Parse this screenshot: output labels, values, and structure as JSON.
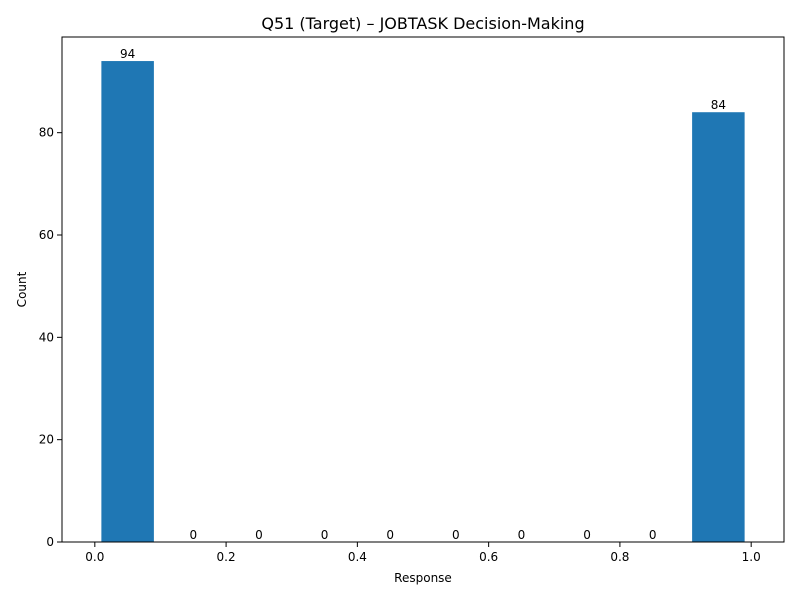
{
  "chart_data": {
    "type": "bar",
    "title": "Q51 (Target) – JOBTASK Decision-Making",
    "xlabel": "Response",
    "ylabel": "Count",
    "bins": [
      {
        "x0": 0.0,
        "x1": 0.1,
        "value": 94
      },
      {
        "x0": 0.1,
        "x1": 0.2,
        "value": 0
      },
      {
        "x0": 0.2,
        "x1": 0.3,
        "value": 0
      },
      {
        "x0": 0.3,
        "x1": 0.4,
        "value": 0
      },
      {
        "x0": 0.4,
        "x1": 0.5,
        "value": 0
      },
      {
        "x0": 0.5,
        "x1": 0.6,
        "value": 0
      },
      {
        "x0": 0.6,
        "x1": 0.7,
        "value": 0
      },
      {
        "x0": 0.7,
        "x1": 0.8,
        "value": 0
      },
      {
        "x0": 0.8,
        "x1": 0.9,
        "value": 0
      },
      {
        "x0": 0.9,
        "x1": 1.0,
        "value": 84
      }
    ],
    "data_labels": [
      "94",
      "0",
      "0",
      "0",
      "0",
      "0",
      "0",
      "0",
      "0",
      "84"
    ],
    "xlim": [
      -0.05,
      1.05
    ],
    "ylim": [
      0,
      98.7
    ],
    "xticks": [
      "0.0",
      "0.2",
      "0.4",
      "0.6",
      "0.8",
      "1.0"
    ],
    "yticks": [
      "0",
      "20",
      "40",
      "60",
      "80"
    ],
    "grid": false,
    "bar_color": "#1f77b4"
  }
}
